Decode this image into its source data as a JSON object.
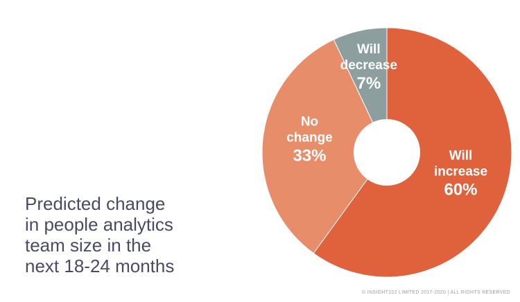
{
  "chart_data": {
    "type": "pie",
    "donut": true,
    "title_lines": [
      "Predicted change",
      "in people analytics",
      "team size in the",
      "next 18-24 months"
    ],
    "slices": [
      {
        "label_lines": [
          "Will",
          "increase"
        ],
        "value": 60,
        "value_label": "60%",
        "color": "#e0623d"
      },
      {
        "label_lines": [
          "No",
          "change"
        ],
        "value": 33,
        "value_label": "33%",
        "color": "#e88d69"
      },
      {
        "label_lines": [
          "Will",
          "decrease"
        ],
        "value": 7,
        "value_label": "7%",
        "color": "#8c9e9e"
      }
    ]
  },
  "footer": {
    "copyright": "© INSIGHT222 LIMITED 2017-2020 | ALL RIGHTS RESERVED"
  }
}
